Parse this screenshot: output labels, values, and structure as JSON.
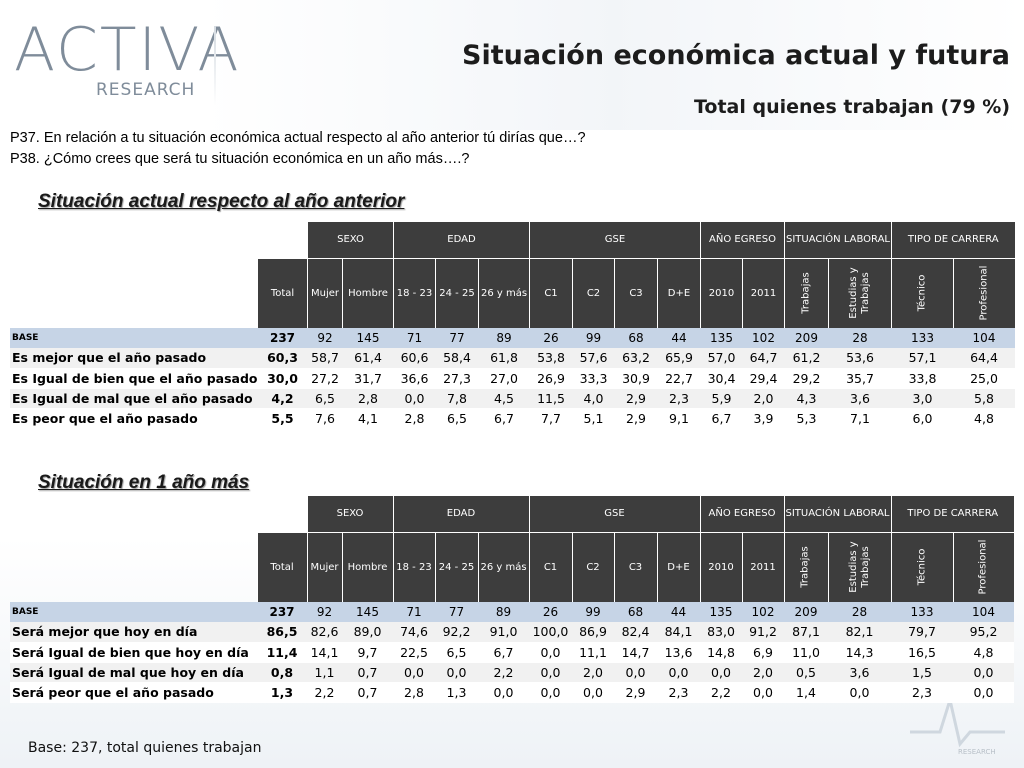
{
  "logo": {
    "word": "ACTIVA",
    "sub": "RESEARCH"
  },
  "title": "Situación económica actual y futura",
  "subtitle": "Total quienes trabajan (79 %)",
  "questions": [
    "P37. En relación a tu situación económica actual respecto al año anterior  tú dirías que…?",
    "P38. ¿Cómo crees que será tu situación económica en un año más….?"
  ],
  "header_groups": [
    "SEXO",
    "EDAD",
    "GSE",
    "AÑO EGRESO",
    "SITUACIÓN LABORAL",
    "TIPO DE CARRERA"
  ],
  "columns": [
    "Total",
    "Mujer",
    "Hombre",
    "18 - 23",
    "24 - 25",
    "26 y más",
    "C1",
    "C2",
    "C3",
    "D+E",
    "2010",
    "2011",
    "Trabajas",
    "Estudias y Trabajas",
    "Técnico",
    "Profesional"
  ],
  "tables": [
    {
      "title": "Situación actual respecto al año anterior",
      "base_label": "BASE",
      "base": [
        "237",
        "92",
        "145",
        "71",
        "77",
        "89",
        "26",
        "99",
        "68",
        "44",
        "135",
        "102",
        "209",
        "28",
        "133",
        "104"
      ],
      "rows": [
        {
          "label": "Es mejor que el año pasado",
          "values": [
            "60,3",
            "58,7",
            "61,4",
            "60,6",
            "58,4",
            "61,8",
            "53,8",
            "57,6",
            "63,2",
            "65,9",
            "57,0",
            "64,7",
            "61,2",
            "53,6",
            "57,1",
            "64,4"
          ]
        },
        {
          "label": "Es Igual de bien que el año pasado",
          "values": [
            "30,0",
            "27,2",
            "31,7",
            "36,6",
            "27,3",
            "27,0",
            "26,9",
            "33,3",
            "30,9",
            "22,7",
            "30,4",
            "29,4",
            "29,2",
            "35,7",
            "33,8",
            "25,0"
          ]
        },
        {
          "label": "Es Igual de mal que el año pasado",
          "values": [
            "4,2",
            "6,5",
            "2,8",
            "0,0",
            "7,8",
            "4,5",
            "11,5",
            "4,0",
            "2,9",
            "2,3",
            "5,9",
            "2,0",
            "4,3",
            "3,6",
            "3,0",
            "5,8"
          ]
        },
        {
          "label": "Es peor que el año pasado",
          "values": [
            "5,5",
            "7,6",
            "4,1",
            "2,8",
            "6,5",
            "6,7",
            "7,7",
            "5,1",
            "2,9",
            "9,1",
            "6,7",
            "3,9",
            "5,3",
            "7,1",
            "6,0",
            "4,8"
          ]
        }
      ]
    },
    {
      "title": "Situación en 1 año más",
      "base_label": "BASE",
      "base": [
        "237",
        "92",
        "145",
        "71",
        "77",
        "89",
        "26",
        "99",
        "68",
        "44",
        "135",
        "102",
        "209",
        "28",
        "133",
        "104"
      ],
      "rows": [
        {
          "label": "Será mejor que hoy en día",
          "values": [
            "86,5",
            "82,6",
            "89,0",
            "74,6",
            "92,2",
            "91,0",
            "100,0",
            "86,9",
            "82,4",
            "84,1",
            "83,0",
            "91,2",
            "87,1",
            "82,1",
            "79,7",
            "95,2"
          ]
        },
        {
          "label": "Será Igual de bien que hoy en día",
          "values": [
            "11,4",
            "14,1",
            "9,7",
            "22,5",
            "6,5",
            "6,7",
            "0,0",
            "11,1",
            "14,7",
            "13,6",
            "14,8",
            "6,9",
            "11,0",
            "14,3",
            "16,5",
            "4,8"
          ]
        },
        {
          "label": "Será Igual de mal que hoy en día",
          "values": [
            "0,8",
            "1,1",
            "0,7",
            "0,0",
            "0,0",
            "2,2",
            "0,0",
            "2,0",
            "0,0",
            "0,0",
            "0,0",
            "2,0",
            "0,5",
            "3,6",
            "1,5",
            "0,0"
          ]
        },
        {
          "label": "Será peor que el año pasado",
          "values": [
            "1,3",
            "2,2",
            "0,7",
            "2,8",
            "1,3",
            "0,0",
            "0,0",
            "0,0",
            "2,9",
            "2,3",
            "2,2",
            "0,0",
            "1,4",
            "0,0",
            "2,3",
            "0,0"
          ]
        }
      ]
    }
  ],
  "footer": "Base: 237, total quienes trabajan",
  "colors": {
    "header_bg": "#3d3d3d",
    "base_row_bg": "#c6d4e6",
    "logo": "#7f8c9a"
  }
}
